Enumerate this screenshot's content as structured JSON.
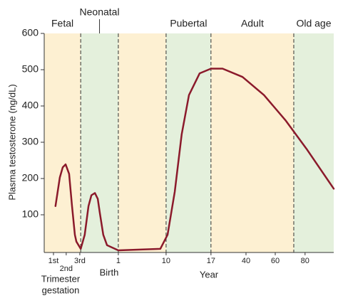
{
  "chart_data": {
    "type": "line",
    "y_label": "Plasma testosterone (ng/dL)",
    "x_label": "Year",
    "annotations": [
      "Birth",
      "Trimester",
      "gestation"
    ],
    "xlim": [
      0,
      100
    ],
    "ylim": [
      0,
      600
    ],
    "yticks": [
      100,
      200,
      300,
      400,
      500,
      600
    ],
    "xticks": [
      {
        "value": 3.2,
        "label": "1st"
      },
      {
        "value": 7.6,
        "label": "2nd"
      },
      {
        "value": 12.3,
        "label": "3rd"
      },
      {
        "value": 25.6,
        "label": "1"
      },
      {
        "value": 42.1,
        "label": "10"
      },
      {
        "value": 57.6,
        "label": "17"
      },
      {
        "value": 69.7,
        "label": "40"
      },
      {
        "value": 79.8,
        "label": "60"
      },
      {
        "value": 90.1,
        "label": "80"
      }
    ],
    "phases": [
      {
        "label": "Fetal",
        "start": 0,
        "end": 12.6,
        "color": "#fdf0d2"
      },
      {
        "label": "Neonatal",
        "start": 12.6,
        "end": 25.6,
        "color": "#e4f0dc"
      },
      {
        "label": null,
        "start": 25.6,
        "end": 42.1,
        "color": "#fdf0d2"
      },
      {
        "label": "Pubertal",
        "start": 42.1,
        "end": 57.6,
        "color": "#e4f0dc"
      },
      {
        "label": "Adult",
        "start": 57.6,
        "end": 86.2,
        "color": "#fdf0d2"
      },
      {
        "label": "Old age",
        "start": 86.2,
        "end": 100,
        "color": "#e4f0dc"
      }
    ],
    "series": [
      {
        "name": null,
        "color": "#8b1a2b",
        "x": [
          3.9,
          5.4,
          6.4,
          7.4,
          8.6,
          9.6,
          10.6,
          11.1,
          12.6,
          14,
          15.3,
          16.3,
          17.5,
          18.5,
          19.2,
          20.4,
          21.7,
          25.6,
          40.1,
          42.6,
          45.1,
          47.5,
          50,
          53.7,
          57.6,
          61.6,
          68.5,
          75.9,
          83.3,
          90.6,
          100
        ],
        "values": [
          124,
          203,
          231,
          239,
          213,
          124,
          45,
          26,
          6,
          45,
          124,
          154,
          160,
          144,
          105,
          45,
          16,
          2,
          6,
          45,
          164,
          322,
          430,
          490,
          503,
          503,
          480,
          430,
          361,
          282,
          172
        ]
      }
    ]
  }
}
